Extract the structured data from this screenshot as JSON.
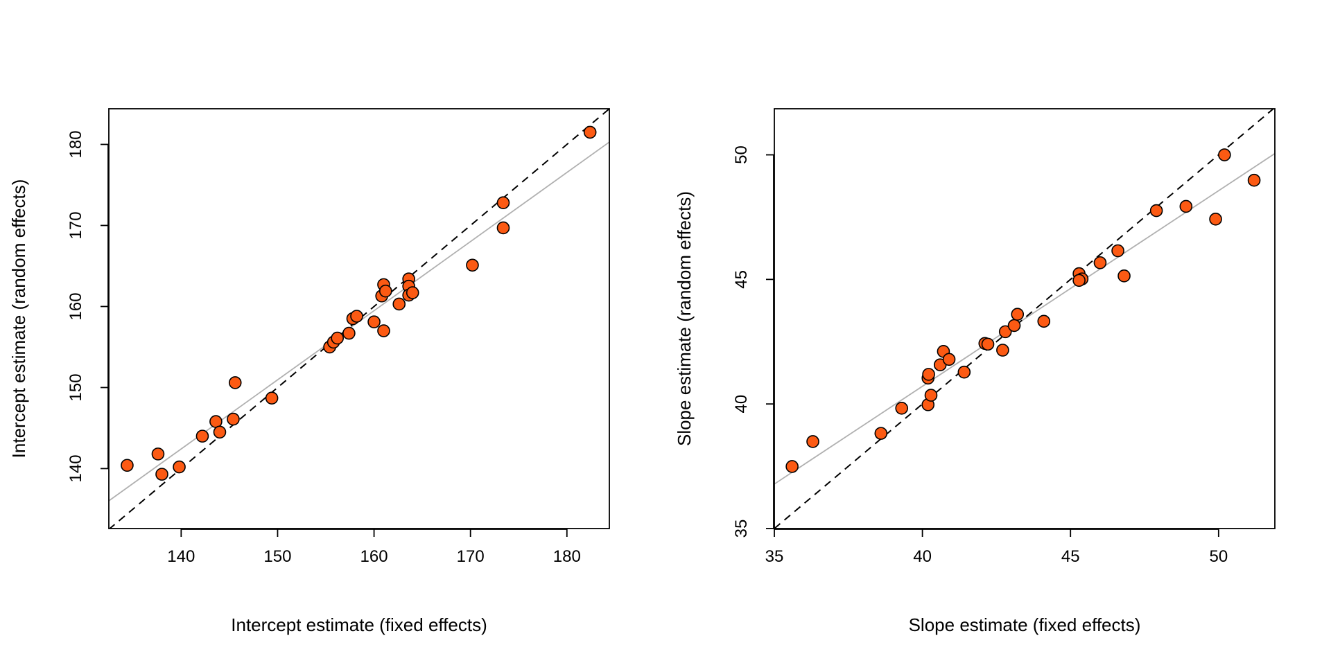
{
  "chart_data": [
    {
      "type": "scatter",
      "xlabel": "Intercept estimate (fixed effects)",
      "ylabel": "Intercept estimate (random effects)",
      "xlim": [
        132.5,
        184.4
      ],
      "ylim": [
        132.6,
        184.4
      ],
      "xticks": [
        "140",
        "150",
        "160",
        "170",
        "180"
      ],
      "yticks": [
        "140",
        "150",
        "160",
        "170",
        "180"
      ],
      "grid": false,
      "point_color": "#FC5A13",
      "reference_line": {
        "style": "dashed",
        "color": "#000000",
        "intercept": 0,
        "slope": 1
      },
      "fit_line": {
        "style": "solid",
        "color": "#B0B0B0",
        "intercept": 23.0,
        "slope": 0.853
      },
      "points": [
        [
          134.4,
          140.4
        ],
        [
          137.6,
          141.8
        ],
        [
          138.0,
          139.3
        ],
        [
          139.8,
          140.2
        ],
        [
          142.2,
          144.0
        ],
        [
          143.6,
          145.8
        ],
        [
          144.0,
          144.5
        ],
        [
          145.4,
          146.1
        ],
        [
          145.6,
          150.6
        ],
        [
          149.4,
          148.7
        ],
        [
          155.4,
          155.0
        ],
        [
          155.8,
          155.6
        ],
        [
          156.2,
          156.1
        ],
        [
          157.4,
          156.7
        ],
        [
          157.8,
          158.5
        ],
        [
          158.2,
          158.8
        ],
        [
          160.0,
          158.1
        ],
        [
          161.0,
          157.0
        ],
        [
          160.8,
          161.3
        ],
        [
          161.0,
          162.7
        ],
        [
          161.2,
          161.9
        ],
        [
          162.6,
          160.3
        ],
        [
          163.6,
          163.4
        ],
        [
          163.6,
          162.5
        ],
        [
          163.6,
          161.4
        ],
        [
          164.0,
          161.7
        ],
        [
          170.2,
          165.1
        ],
        [
          173.4,
          172.8
        ],
        [
          173.4,
          169.7
        ],
        [
          182.4,
          181.5
        ]
      ]
    },
    {
      "type": "scatter",
      "xlabel": "Slope estimate (fixed effects)",
      "ylabel": "Slope estimate (random effects)",
      "xlim": [
        35.0,
        51.9
      ],
      "ylim": [
        35.0,
        51.85
      ],
      "xticks": [
        "35",
        "40",
        "45",
        "50"
      ],
      "yticks": [
        "35",
        "40",
        "45",
        "50"
      ],
      "grid": false,
      "point_color": "#FC5A13",
      "reference_line": {
        "style": "dashed",
        "color": "#000000",
        "intercept": 0,
        "slope": 1
      },
      "fit_line": {
        "style": "solid",
        "color": "#B0B0B0",
        "intercept": 9.31,
        "slope": 0.785
      },
      "points": [
        [
          35.6,
          37.49
        ],
        [
          36.3,
          38.49
        ],
        [
          38.6,
          38.82
        ],
        [
          39.3,
          39.83
        ],
        [
          40.19,
          39.97
        ],
        [
          40.29,
          40.35
        ],
        [
          40.19,
          41.04
        ],
        [
          40.21,
          41.19
        ],
        [
          40.6,
          41.57
        ],
        [
          40.71,
          42.11
        ],
        [
          40.9,
          41.79
        ],
        [
          41.41,
          41.28
        ],
        [
          42.11,
          42.43
        ],
        [
          42.21,
          42.4
        ],
        [
          42.71,
          42.16
        ],
        [
          42.8,
          42.9
        ],
        [
          43.1,
          43.15
        ],
        [
          43.21,
          43.6
        ],
        [
          44.1,
          43.32
        ],
        [
          45.29,
          45.23
        ],
        [
          45.39,
          45.02
        ],
        [
          45.29,
          44.96
        ],
        [
          46.0,
          45.67
        ],
        [
          46.6,
          46.15
        ],
        [
          46.81,
          45.14
        ],
        [
          47.9,
          47.76
        ],
        [
          48.9,
          47.93
        ],
        [
          49.9,
          47.42
        ],
        [
          50.2,
          50.0
        ],
        [
          51.2,
          48.98
        ]
      ]
    }
  ]
}
